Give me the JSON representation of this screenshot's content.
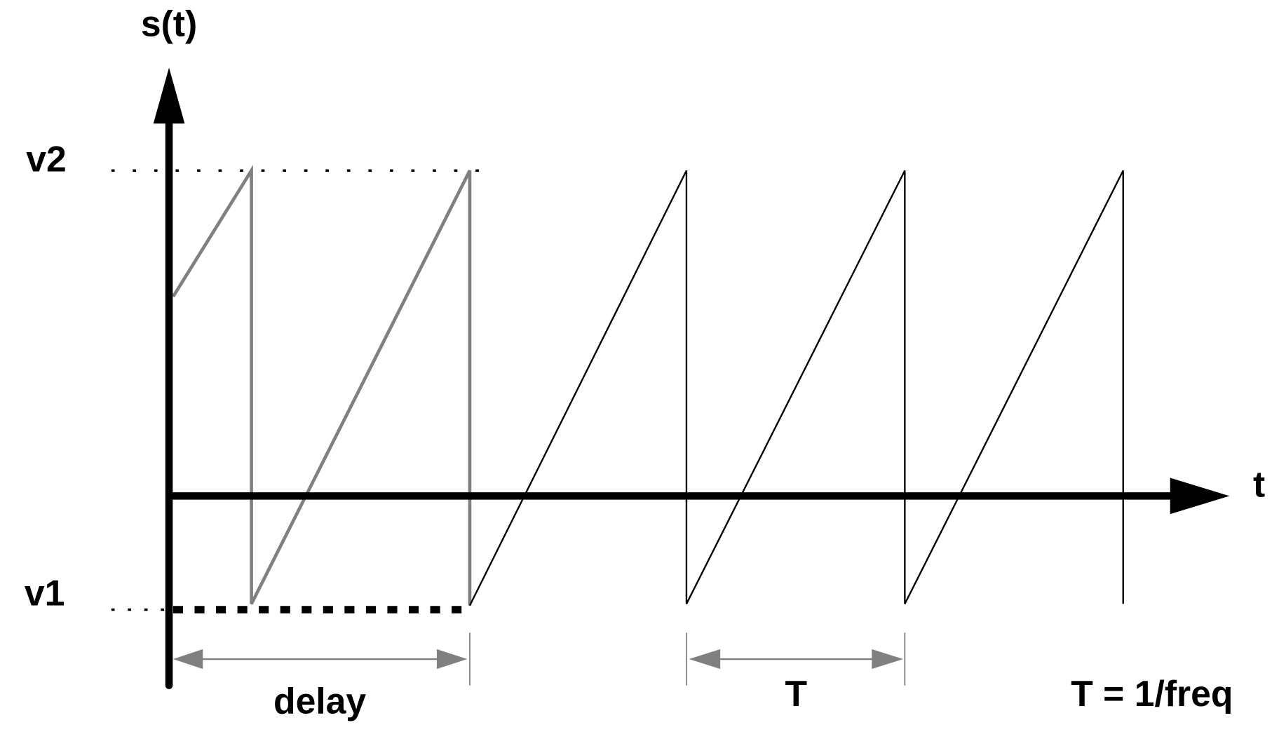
{
  "labels": {
    "y_axis": "s(t)",
    "x_axis": "t",
    "v2": "v2",
    "v1": "v1",
    "delay": "delay",
    "period": "T",
    "formula": "T = 1/freq"
  },
  "colors": {
    "axes": "#000000",
    "delayed_segment": "#808080",
    "waveform": "#000000",
    "dimension_arrows": "#808080"
  },
  "chart_data": {
    "type": "line",
    "description_kind": "sawtooth waveform with delay",
    "levels": [
      "v1",
      "v2"
    ],
    "delay_periods": 1.35,
    "periods_shown_after_delay": 3
  }
}
